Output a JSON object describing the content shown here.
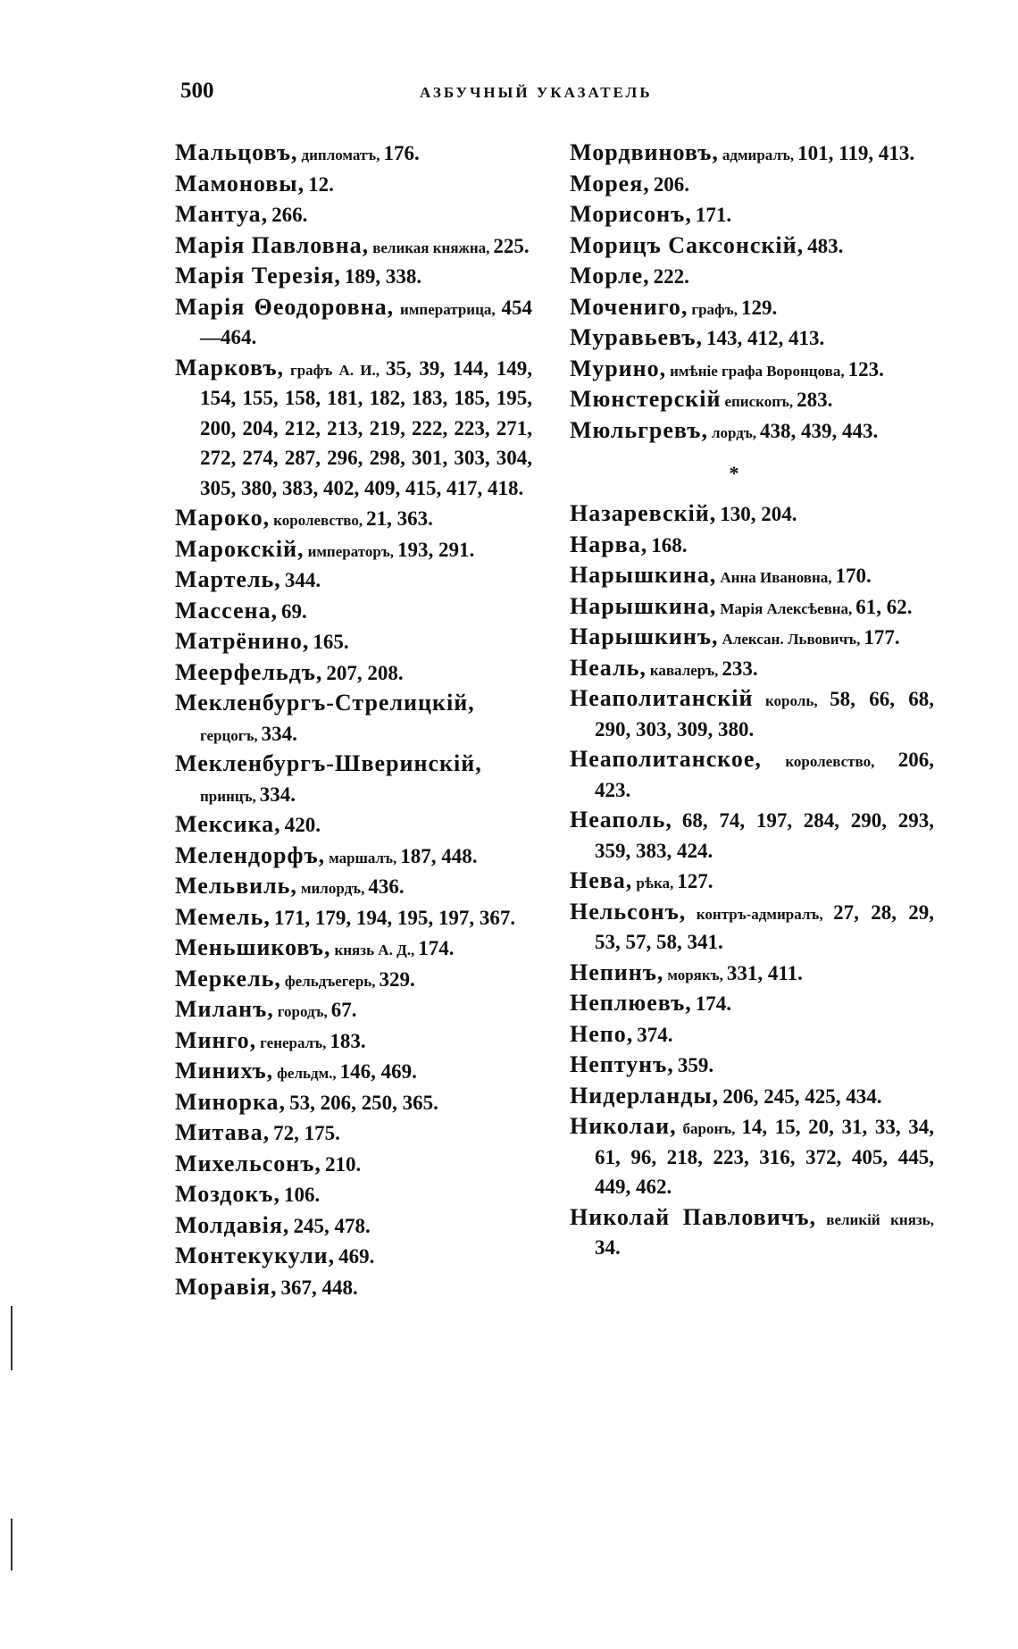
{
  "header": {
    "page_number": "500",
    "running_title": "АЗБУЧНЫЙ УКАЗАТЕЛЬ"
  },
  "left_column": [
    {
      "head": "Мальцовъ,",
      "desc": "дипломатъ,",
      "refs": "176."
    },
    {
      "head": "Мамоновы,",
      "desc": "",
      "refs": "12."
    },
    {
      "head": "Мантуа,",
      "desc": "",
      "refs": "266."
    },
    {
      "head": "Марія Павловна,",
      "desc": "великая княжна,",
      "refs": "225."
    },
    {
      "head": "Марія Терезія,",
      "desc": "",
      "refs": "189, 338."
    },
    {
      "head": "Марія Θеодоровна,",
      "desc": "императрица,",
      "refs": "454—464."
    },
    {
      "head": "Марковъ,",
      "desc": "графъ А. И.,",
      "refs": "35, 39, 144, 149, 154, 155, 158, 181, 182, 183, 185, 195, 200, 204, 212, 213, 219, 222, 223, 271, 272, 274, 287, 296, 298, 301, 303, 304, 305, 380, 383, 402, 409, 415, 417, 418."
    },
    {
      "head": "Мароко,",
      "desc": "королевство,",
      "refs": "21, 363."
    },
    {
      "head": "Марокскій,",
      "desc": "императоръ,",
      "refs": "193, 291."
    },
    {
      "head": "Мартель,",
      "desc": "",
      "refs": "344."
    },
    {
      "head": "Массена,",
      "desc": "",
      "refs": "69."
    },
    {
      "head": "Матрёнино,",
      "desc": "",
      "refs": "165."
    },
    {
      "head": "Меерфельдъ,",
      "desc": "",
      "refs": "207, 208."
    },
    {
      "head": "Мекленбургъ-Стрелицкій,",
      "desc": "герцогъ,",
      "refs": "334."
    },
    {
      "head": "Мекленбургъ-Шверинскій,",
      "desc": "принцъ,",
      "refs": "334."
    },
    {
      "head": "Мексика,",
      "desc": "",
      "refs": "420."
    },
    {
      "head": "Мелендорфъ,",
      "desc": "маршалъ,",
      "refs": "187, 448."
    },
    {
      "head": "Мельвиль,",
      "desc": "милордъ,",
      "refs": "436."
    },
    {
      "head": "Мемель,",
      "desc": "",
      "refs": "171, 179, 194, 195, 197, 367."
    },
    {
      "head": "Меньшиковъ,",
      "desc": "князь А. Д.,",
      "refs": "174."
    },
    {
      "head": "Меркель,",
      "desc": "фельдъегерь,",
      "refs": "329."
    },
    {
      "head": "Миланъ,",
      "desc": "городъ,",
      "refs": "67."
    },
    {
      "head": "Минго,",
      "desc": "генералъ,",
      "refs": "183."
    },
    {
      "head": "Минихъ,",
      "desc": "фельдм.,",
      "refs": "146, 469."
    },
    {
      "head": "Минорка,",
      "desc": "",
      "refs": "53, 206, 250, 365."
    },
    {
      "head": "Митава,",
      "desc": "",
      "refs": "72, 175."
    },
    {
      "head": "Михельсонъ,",
      "desc": "",
      "refs": "210."
    },
    {
      "head": "Моздокъ,",
      "desc": "",
      "refs": "106."
    },
    {
      "head": "Молдавія,",
      "desc": "",
      "refs": "245, 478."
    },
    {
      "head": "Монтекукули,",
      "desc": "",
      "refs": "469."
    },
    {
      "head": "Моравія,",
      "desc": "",
      "refs": "367, 448."
    }
  ],
  "right_column_top": [
    {
      "head": "Мордвиновъ,",
      "desc": "адмиралъ,",
      "refs": "101, 119, 413."
    },
    {
      "head": "Морея,",
      "desc": "",
      "refs": "206."
    },
    {
      "head": "Морисонъ,",
      "desc": "",
      "refs": "171."
    },
    {
      "head": "Морицъ Саксонскій,",
      "desc": "",
      "refs": "483."
    },
    {
      "head": "Морле,",
      "desc": "",
      "refs": "222."
    },
    {
      "head": "Мочениго,",
      "desc": "графъ,",
      "refs": "129."
    },
    {
      "head": "Муравьевъ,",
      "desc": "",
      "refs": "143, 412, 413."
    },
    {
      "head": "Мурино,",
      "desc": "имѣніе графа Воронцова,",
      "refs": "123."
    },
    {
      "head": "Мюнстерскій",
      "desc": "епископъ,",
      "refs": "283."
    },
    {
      "head": "Мюльгревъ,",
      "desc": "лордъ,",
      "refs": "438, 439, 443."
    }
  ],
  "separator": "*",
  "right_column_bottom": [
    {
      "head": "Назаревскій,",
      "desc": "",
      "refs": "130, 204."
    },
    {
      "head": "Нарва,",
      "desc": "",
      "refs": "168."
    },
    {
      "head": "Нарышкина,",
      "desc": "Анна Ивановна,",
      "refs": "170."
    },
    {
      "head": "Нарышкина,",
      "desc": "Марія Алексѣевна,",
      "refs": "61, 62."
    },
    {
      "head": "Нарышкинъ,",
      "desc": "Алексан. Львовичъ,",
      "refs": "177."
    },
    {
      "head": "Неаль,",
      "desc": "кавалеръ,",
      "refs": "233."
    },
    {
      "head": "Неаполитанскій",
      "desc": "король,",
      "refs": "58, 66, 68, 290, 303, 309, 380."
    },
    {
      "head": "Неаполитанское,",
      "desc": "королевство,",
      "refs": "206, 423."
    },
    {
      "head": "Неаполь,",
      "desc": "",
      "refs": "68, 74, 197, 284, 290, 293, 359, 383, 424."
    },
    {
      "head": "Нева,",
      "desc": "рѣка,",
      "refs": "127."
    },
    {
      "head": "Нельсонъ,",
      "desc": "контръ-адмиралъ,",
      "refs": "27, 28, 29, 53, 57, 58, 341."
    },
    {
      "head": "Непинъ,",
      "desc": "морякъ,",
      "refs": "331, 411."
    },
    {
      "head": "Неплюевъ,",
      "desc": "",
      "refs": "174."
    },
    {
      "head": "Непо,",
      "desc": "",
      "refs": "374."
    },
    {
      "head": "Нептунъ,",
      "desc": "",
      "refs": "359."
    },
    {
      "head": "Нидерланды,",
      "desc": "",
      "refs": "206, 245, 425, 434."
    },
    {
      "head": "Николаи,",
      "desc": "баронъ,",
      "refs": "14, 15, 20, 31, 33, 34, 61, 96, 218, 223, 316, 372, 405, 445, 449, 462."
    },
    {
      "head": "Николай Павловичъ,",
      "desc": "великій князь,",
      "refs": "34."
    }
  ]
}
